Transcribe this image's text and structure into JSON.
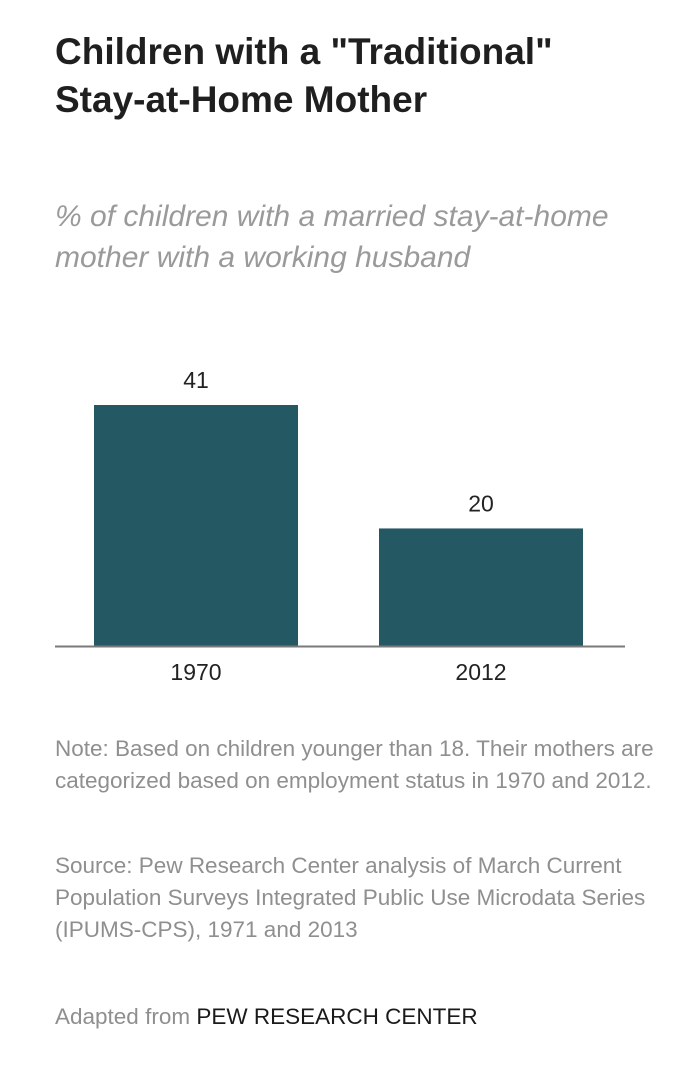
{
  "title": "Children with a \"Traditional\" Stay-at-Home Mother",
  "subtitle": "% of children with a married stay-at-home mother with a working husband",
  "chart_data": {
    "type": "bar",
    "categories": [
      "1970",
      "2012"
    ],
    "values": [
      41,
      20
    ],
    "data_labels": [
      "41",
      "20"
    ],
    "ylim": [
      0,
      41
    ],
    "grid": false,
    "bar_color": "#245963",
    "axis_color": "#7a7a7a"
  },
  "note": "Note: Based on children younger than 18. Their mothers are categorized based on employment status in 1970 and 2012.",
  "source": "Source: Pew Research Center analysis of March Current Population Surveys Integrated Public Use Microdata Series (IPUMS-CPS), 1971 and 2013",
  "credit": {
    "prefix": "Adapted from",
    "organization": "PEW RESEARCH CENTER"
  }
}
